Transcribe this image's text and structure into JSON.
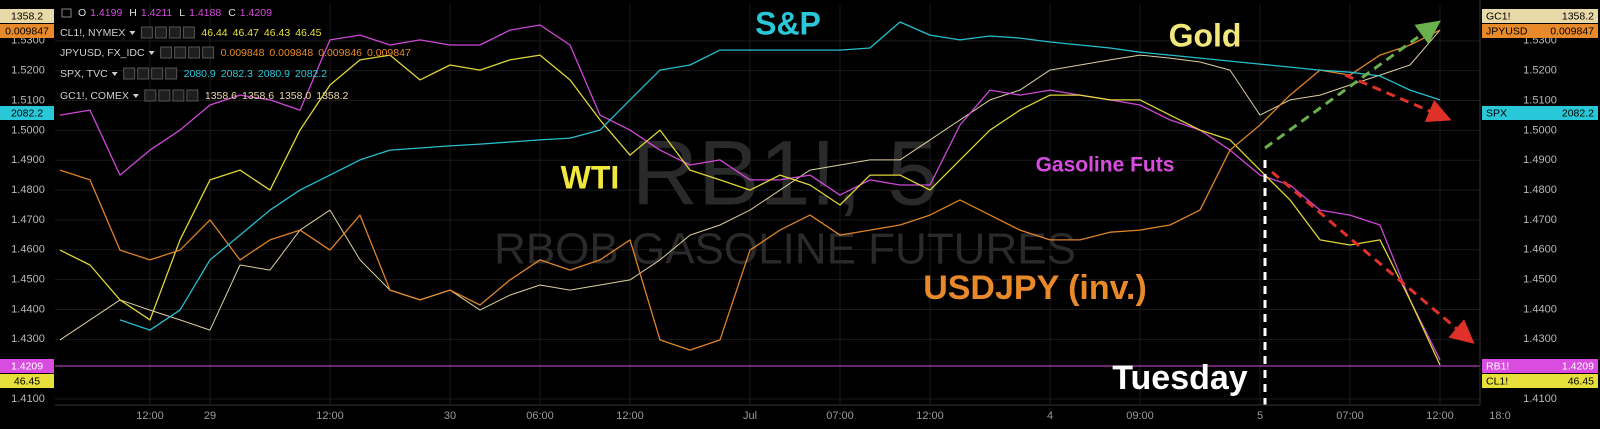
{
  "chart_data": {
    "type": "line",
    "watermark": {
      "symbol": "RB1!, 5",
      "description": "RBOB GASOLINE FUTURES"
    },
    "ohlc_labels": [
      "O",
      "H",
      "L",
      "C"
    ],
    "categories": [
      null,
      null,
      null,
      "12:00",
      null,
      "29",
      null,
      null,
      null,
      "12:00",
      null,
      null,
      null,
      "30",
      null,
      null,
      "06:00",
      null,
      null,
      "12:00",
      null,
      null,
      null,
      "Jul",
      null,
      null,
      "07:00",
      null,
      null,
      "12:00",
      null,
      null,
      null,
      "4",
      null,
      null,
      "09:00",
      null,
      null,
      null,
      "5",
      null,
      null,
      "07:00",
      null,
      null,
      "12:00",
      null,
      "18:0"
    ],
    "ylim": [
      1.408,
      1.542
    ],
    "yticks": [
      {
        "value": 1.53,
        "label": "1.5300"
      },
      {
        "value": 1.52,
        "label": "1.5200"
      },
      {
        "value": 1.51,
        "label": "1.5100"
      },
      {
        "value": 1.5,
        "label": "1.5000"
      },
      {
        "value": 1.49,
        "label": "1.4900"
      },
      {
        "value": 1.48,
        "label": "1.4800"
      },
      {
        "value": 1.47,
        "label": "1.4700"
      },
      {
        "value": 1.46,
        "label": "1.4600"
      },
      {
        "value": 1.45,
        "label": "1.4500"
      },
      {
        "value": 1.44,
        "label": "1.4400"
      },
      {
        "value": 1.43,
        "label": "1.4300"
      },
      {
        "value": 1.41,
        "label": "1.4100"
      }
    ],
    "grid": true,
    "series": [
      {
        "name": "RB1!",
        "color": "#d84ce0",
        "price_label": "1.4209",
        "ohlc": [
          "1.4199",
          "1.4211",
          "1.4188",
          "1.4209"
        ],
        "values": [
          1.5051,
          1.5068,
          1.485,
          1.4934,
          1.5001,
          1.5085,
          1.5118,
          1.5102,
          1.5068,
          1.5303,
          1.5319,
          1.5286,
          1.5303,
          1.5286,
          1.5286,
          1.5336,
          1.5353,
          1.5286,
          1.5051,
          1.5001,
          1.4934,
          1.4884,
          1.4901,
          1.4834,
          1.4834,
          1.485,
          1.4783,
          1.4834,
          1.4817,
          1.4817,
          1.5018,
          1.5135,
          1.5118,
          1.5135,
          1.5118,
          1.5102,
          1.5085,
          1.5035,
          1.5001,
          1.4934,
          1.485,
          1.4817,
          1.4733,
          1.4716,
          1.4683,
          1.4432,
          1.4231,
          null,
          null
        ]
      },
      {
        "name": "CL1!",
        "symbol": "CL1!, NYMEX",
        "color": "#e8e03a",
        "price_label": "46.45",
        "ohlc": [
          "46.44",
          "46.47",
          "46.43",
          "46.45"
        ],
        "values": [
          1.4599,
          1.4549,
          1.4432,
          1.4365,
          1.4633,
          1.4834,
          1.4867,
          1.48,
          1.5001,
          1.5152,
          1.5236,
          1.5252,
          1.5169,
          1.5219,
          1.5202,
          1.5236,
          1.5252,
          1.5169,
          1.5035,
          1.4917,
          1.5001,
          1.4867,
          1.4834,
          1.48,
          1.485,
          1.4817,
          1.475,
          1.485,
          1.485,
          1.48,
          1.4901,
          1.5001,
          1.5068,
          1.5118,
          1.5118,
          1.5102,
          1.5102,
          1.5051,
          1.5001,
          1.4968,
          1.4867,
          1.4767,
          1.4633,
          1.4616,
          1.4633,
          1.4432,
          1.4214,
          null,
          null
        ]
      },
      {
        "name": "JPYUSD",
        "symbol": "JPYUSD, FX_IDC",
        "color": "#e8892a",
        "price_label": "0.009847",
        "ohlc": [
          "0.009848",
          "0.009848",
          "0.009846",
          "0.009847"
        ],
        "values": [
          1.4867,
          1.4834,
          1.4599,
          1.4566,
          1.4599,
          1.47,
          1.4566,
          1.4633,
          1.4666,
          1.4599,
          1.4716,
          1.4465,
          1.4432,
          1.4465,
          1.4415,
          1.4499,
          1.4566,
          1.4532,
          1.4566,
          1.4633,
          1.4298,
          1.4264,
          1.4298,
          1.4599,
          1.4666,
          1.4716,
          1.4649,
          1.4666,
          1.4683,
          1.4716,
          1.4767,
          1.4716,
          1.4666,
          1.4633,
          1.4633,
          1.4659,
          1.4666,
          1.4683,
          1.4733,
          1.4934,
          1.5018,
          1.5118,
          1.5202,
          1.5185,
          1.5252,
          1.5286,
          1.5336,
          null,
          null
        ]
      },
      {
        "name": "SPX",
        "symbol": "SPX, TVC",
        "color": "#28c8d8",
        "price_label": "2082.2",
        "ohlc": [
          "2080.9",
          "2082.3",
          "2080.9",
          "2082.2"
        ],
        "values": [
          null,
          null,
          1.4365,
          1.4331,
          1.4398,
          1.4566,
          1.4649,
          1.4733,
          1.48,
          1.485,
          1.4901,
          1.4934,
          1.4941,
          1.4948,
          1.4954,
          1.4961,
          1.4968,
          1.4974,
          1.5001,
          1.5102,
          1.5202,
          1.5219,
          1.5269,
          1.5269,
          1.5269,
          1.5269,
          1.5269,
          1.5276,
          1.5363,
          1.5319,
          1.5303,
          1.5316,
          1.5309,
          1.5296,
          1.5286,
          1.5276,
          1.5262,
          1.5252,
          1.5242,
          1.5232,
          1.5222,
          1.5212,
          1.5202,
          1.5195,
          1.5182,
          1.5135,
          1.5102,
          null,
          null
        ]
      },
      {
        "name": "GC1!",
        "symbol": "GC1!, COMEX",
        "color": "#e8d9a8",
        "price_label": "1358.2",
        "ohlc": [
          "1358.6",
          "1358.6",
          "1358.0",
          "1358.2"
        ],
        "values": [
          1.4298,
          1.4365,
          1.4432,
          1.4398,
          1.4365,
          1.4331,
          1.4549,
          1.4532,
          1.4666,
          1.4733,
          1.4566,
          1.4465,
          1.4432,
          1.4465,
          1.4398,
          1.4448,
          1.4482,
          1.4465,
          1.4482,
          1.4499,
          1.4566,
          1.4649,
          1.4683,
          1.4733,
          1.48,
          1.4867,
          1.4884,
          1.4901,
          1.4901,
          1.4968,
          1.5035,
          1.5102,
          1.5135,
          1.5202,
          1.5219,
          1.5236,
          1.5252,
          1.5242,
          1.5229,
          1.5202,
          1.5051,
          1.5102,
          1.5118,
          1.5152,
          1.5185,
          1.5219,
          1.5336,
          null,
          null
        ]
      }
    ],
    "annotations": [
      {
        "text": "S&P",
        "color": "#28c8d8"
      },
      {
        "text": "Gold",
        "color": "#f2e77a"
      },
      {
        "text": "WTI",
        "color": "#f0e83a"
      },
      {
        "text": "Gasoline Futs",
        "color": "#d84ce0"
      },
      {
        "text": "USDJPY (inv.)",
        "color": "#e8892a"
      },
      {
        "text": "Tuesday",
        "color": "#ffffff"
      }
    ]
  }
}
